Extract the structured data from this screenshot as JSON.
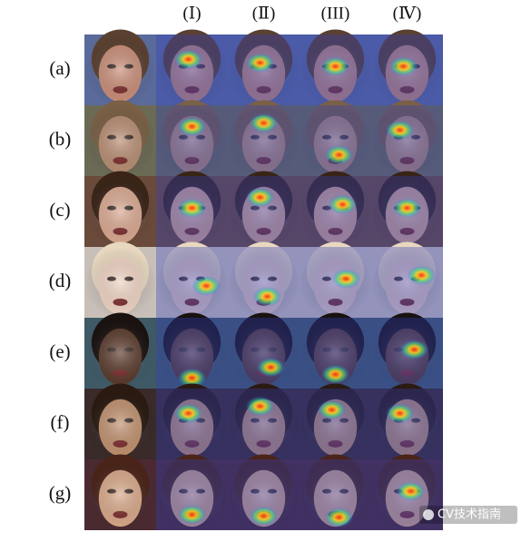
{
  "figure": {
    "columns": [
      "(Ⅰ)",
      "(Ⅱ)",
      "(III)",
      "(Ⅳ)"
    ],
    "rows": [
      "(a)",
      "(b)",
      "(c)",
      "(d)",
      "(e)",
      "(f)",
      "(g)"
    ],
    "watermark": "CV技术指南"
  }
}
